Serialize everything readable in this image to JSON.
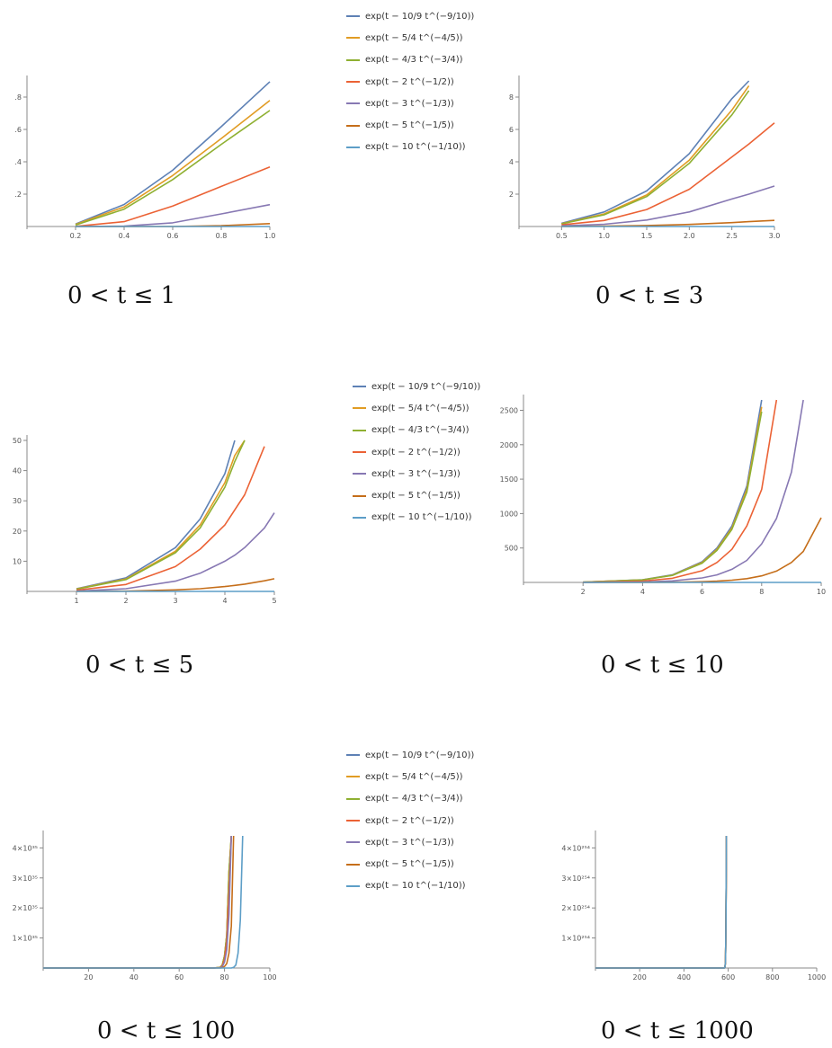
{
  "colors": [
    "#5e81b5",
    "#e19c24",
    "#8fb032",
    "#eb6235",
    "#8778b3",
    "#c56e1a",
    "#5d9ec7"
  ],
  "legend": {
    "entries": [
      "exp(t − 10/9 t^(−9/10))",
      "exp(t − 5/4 t^(−4/5))",
      "exp(t − 4/3 t^(−3/4))",
      "exp(t − 2 t^(−1/2))",
      "exp(t − 3 t^(−1/3))",
      "exp(t − 5 t^(−1/5))",
      "exp(t − 10 t^(−1/10))"
    ]
  },
  "chart_data": [
    {
      "type": "line",
      "caption": "0 < t ≤ 1",
      "xlim": [
        0,
        1
      ],
      "ylim": [
        0,
        0.9
      ],
      "xticks": [
        0.2,
        0.4,
        0.6,
        0.8,
        1.0
      ],
      "xtick_labels": [
        "0.2",
        "0.4",
        "0.6",
        "0.8",
        "1.0"
      ],
      "yticks": [
        0.2,
        0.4,
        0.6,
        0.8
      ],
      "ytick_labels": [
        ".2",
        ".4",
        ".6",
        ".8"
      ],
      "x": [
        0.2,
        0.4,
        0.6,
        0.8,
        1.0
      ],
      "series": [
        {
          "name": "exp(t − 10/9 t^(−9/10))",
          "values": [
            0.015,
            0.136,
            0.348,
            0.617,
            0.895
          ]
        },
        {
          "name": "exp(t − 5/4 t^(−4/5))",
          "values": [
            0.012,
            0.121,
            0.315,
            0.544,
            0.779
          ]
        },
        {
          "name": "exp(t − 4/3 t^(−3/4))",
          "values": [
            0.009,
            0.107,
            0.29,
            0.508,
            0.717
          ]
        },
        {
          "name": "exp(t − 2 t^(−1/2))",
          "values": [
            0.001,
            0.03,
            0.126,
            0.248,
            0.368
          ]
        },
        {
          "name": "exp(t − 3 t^(−1/3))",
          "values": [
            0.0,
            0.002,
            0.023,
            0.078,
            0.135
          ]
        },
        {
          "name": "exp(t − 5 t^(−1/5))",
          "values": [
            0.0,
            0.0,
            0.0,
            0.005,
            0.018
          ]
        },
        {
          "name": "exp(t − 10 t^(−1/10))",
          "values": [
            0.0,
            0.0,
            0.0,
            0.0,
            0.0
          ]
        }
      ]
    },
    {
      "type": "line",
      "caption": "0 < t ≤ 3",
      "xlim": [
        0,
        3
      ],
      "ylim": [
        0,
        9
      ],
      "xticks": [
        0.5,
        1.0,
        1.5,
        2.0,
        2.5,
        3.0
      ],
      "xtick_labels": [
        "0.5",
        "1.0",
        "1.5",
        "2.0",
        "2.5",
        "3.0"
      ],
      "yticks": [
        2,
        4,
        6,
        8
      ],
      "ytick_labels": [
        "2",
        "4",
        "6",
        "8"
      ],
      "x": [
        0.5,
        1.0,
        1.5,
        2.0,
        2.5,
        2.7,
        3.0
      ],
      "series": [
        {
          "name": "exp(t − 10/9 t^(−9/10))",
          "values": [
            0.2,
            0.9,
            2.2,
            4.5,
            7.9,
            9.0,
            null
          ]
        },
        {
          "name": "exp(t − 5/4 t^(−4/5))",
          "values": [
            0.17,
            0.78,
            1.95,
            4.1,
            7.2,
            8.7,
            null
          ]
        },
        {
          "name": "exp(t − 4/3 t^(−3/4))",
          "values": [
            0.16,
            0.72,
            1.85,
            3.9,
            6.9,
            8.4,
            null
          ]
        },
        {
          "name": "exp(t − 2 t^(−1/2))",
          "values": [
            0.1,
            0.37,
            1.05,
            2.3,
            4.3,
            5.1,
            6.4
          ]
        },
        {
          "name": "exp(t − 3 t^(−1/3))",
          "values": [
            0.04,
            0.14,
            0.4,
            0.9,
            1.7,
            2.0,
            2.5
          ]
        },
        {
          "name": "exp(t − 5 t^(−1/5))",
          "values": [
            0.0,
            0.02,
            0.06,
            0.13,
            0.24,
            0.3,
            0.38
          ]
        },
        {
          "name": "exp(t − 10 t^(−1/10))",
          "values": [
            0.0,
            0.0,
            0.0,
            0.0,
            0.0,
            0.0,
            0.0
          ]
        }
      ]
    },
    {
      "type": "line",
      "caption": "0 < t ≤ 5",
      "xlim": [
        0,
        5
      ],
      "ylim": [
        0,
        50
      ],
      "xticks": [
        1,
        2,
        3,
        4,
        5
      ],
      "xtick_labels": [
        "1",
        "2",
        "3",
        "4",
        "5"
      ],
      "yticks": [
        10,
        20,
        30,
        40,
        50
      ],
      "ytick_labels": [
        "10",
        "20",
        "30",
        "40",
        "50"
      ],
      "x": [
        1,
        2,
        3,
        3.5,
        4,
        4.2,
        4.4,
        4.8,
        5
      ],
      "series": [
        {
          "name": "exp(t − 10/9 t^(−9/10))",
          "values": [
            0.9,
            4.5,
            14.5,
            24.0,
            39.0,
            50.0,
            null,
            null,
            null
          ]
        },
        {
          "name": "exp(t − 5/4 t^(−4/5))",
          "values": [
            0.8,
            4.1,
            13.3,
            22.0,
            36.0,
            45.0,
            50.0,
            null,
            null
          ]
        },
        {
          "name": "exp(t − 4/3 t^(−3/4))",
          "values": [
            0.7,
            3.9,
            12.8,
            21.0,
            34.5,
            43.0,
            50.0,
            null,
            null
          ]
        },
        {
          "name": "exp(t − 2 t^(−1/2))",
          "values": [
            0.4,
            2.3,
            8.2,
            14.0,
            22.0,
            27.0,
            32.0,
            48.0,
            null
          ]
        },
        {
          "name": "exp(t − 3 t^(−1/3))",
          "values": [
            0.1,
            0.9,
            3.4,
            6.0,
            10.0,
            12.0,
            14.5,
            21.0,
            26.0
          ]
        },
        {
          "name": "exp(t − 5 t^(−1/5))",
          "values": [
            0.0,
            0.1,
            0.5,
            0.9,
            1.6,
            2.0,
            2.4,
            3.5,
            4.2
          ]
        },
        {
          "name": "exp(t − 10 t^(−1/10))",
          "values": [
            0.0,
            0.0,
            0.0,
            0.0,
            0.0,
            0.0,
            0.0,
            0.0,
            0.0
          ]
        }
      ]
    },
    {
      "type": "line",
      "caption": "0 < t ≤ 10",
      "xlim": [
        0,
        10
      ],
      "ylim": [
        0,
        2650
      ],
      "xticks": [
        2,
        4,
        6,
        8,
        10
      ],
      "xtick_labels": [
        "2",
        "4",
        "6",
        "8",
        "10"
      ],
      "yticks": [
        500,
        1000,
        1500,
        2000,
        2500
      ],
      "ytick_labels": [
        "500",
        "1000",
        "1500",
        "2000",
        "2500"
      ],
      "x": [
        2,
        4,
        5,
        6,
        6.5,
        7,
        7.5,
        8,
        8.5,
        9,
        9.4,
        10
      ],
      "series": [
        {
          "name": "exp(t − 10/9 t^(−9/10))",
          "values": [
            4,
            39,
            110,
            300,
            500,
            820,
            1400,
            2650,
            null,
            null,
            null,
            null
          ]
        },
        {
          "name": "exp(t − 5/4 t^(−4/5))",
          "values": [
            4,
            37,
            105,
            290,
            480,
            790,
            1350,
            2550,
            null,
            null,
            null,
            null
          ]
        },
        {
          "name": "exp(t − 4/3 t^(−3/4))",
          "values": [
            3.6,
            36,
            102,
            280,
            465,
            770,
            1310,
            2480,
            null,
            null,
            null,
            null
          ]
        },
        {
          "name": "exp(t − 2 t^(−1/2))",
          "values": [
            2,
            20,
            60,
            170,
            290,
            480,
            820,
            1350,
            2650,
            null,
            null,
            null
          ]
        },
        {
          "name": "exp(t − 3 t^(−1/3))",
          "values": [
            0.7,
            7,
            22,
            65,
            110,
            190,
            320,
            560,
            930,
            1600,
            2650,
            null
          ]
        },
        {
          "name": "exp(t − 5 t^(−1/5))",
          "values": [
            0,
            0.8,
            3,
            10,
            18,
            32,
            55,
            95,
            165,
            290,
            450,
            940
          ]
        },
        {
          "name": "exp(t − 10 t^(−1/10))",
          "values": [
            0,
            0,
            0,
            0,
            0,
            0,
            0,
            0,
            0,
            0,
            0,
            0
          ]
        }
      ]
    },
    {
      "type": "line",
      "caption": "0 < t ≤ 100",
      "xlim": [
        0,
        100
      ],
      "ylim": [
        0,
        4.4
      ],
      "y_unit_note": "×10^35",
      "xticks": [
        20,
        40,
        60,
        80,
        100
      ],
      "xtick_labels": [
        "20",
        "40",
        "60",
        "80",
        "100"
      ],
      "yticks": [
        1,
        2,
        3,
        4
      ],
      "ytick_labels": [
        "1×10³⁵",
        "2×10³⁵",
        "3×10³⁵",
        "4×10³⁵"
      ],
      "x": [
        0,
        60,
        75,
        78,
        79,
        80,
        81,
        82,
        83,
        84,
        85,
        86,
        87,
        88
      ],
      "series": [
        {
          "name": "exp(t − 10/9 t^(−9/10))",
          "values": [
            0,
            0,
            0,
            0.02,
            0.1,
            0.4,
            1.1,
            3.2,
            4.4,
            null,
            null,
            null,
            null,
            null
          ]
        },
        {
          "name": "exp(t − 5/4 t^(−4/5))",
          "values": [
            0,
            0,
            0,
            0.02,
            0.1,
            0.4,
            1.1,
            3.2,
            4.4,
            null,
            null,
            null,
            null,
            null
          ]
        },
        {
          "name": "exp(t − 4/3 t^(−3/4))",
          "values": [
            0,
            0,
            0,
            0.02,
            0.1,
            0.4,
            1.1,
            3.2,
            4.4,
            null,
            null,
            null,
            null,
            null
          ]
        },
        {
          "name": "exp(t − 2 t^(−1/2))",
          "values": [
            0,
            0,
            0,
            0.015,
            0.07,
            0.3,
            0.9,
            2.6,
            4.4,
            null,
            null,
            null,
            null,
            null
          ]
        },
        {
          "name": "exp(t − 3 t^(−1/3))",
          "values": [
            0,
            0,
            0,
            0.01,
            0.04,
            0.2,
            0.6,
            1.8,
            4.4,
            null,
            null,
            null,
            null,
            null
          ]
        },
        {
          "name": "exp(t − 5 t^(−1/5))",
          "values": [
            0,
            0,
            0,
            0,
            0.01,
            0.05,
            0.15,
            0.5,
            1.4,
            4.4,
            null,
            null,
            null,
            null
          ]
        },
        {
          "name": "exp(t − 10 t^(−1/10))",
          "values": [
            0,
            0,
            0,
            0,
            0,
            0,
            0,
            0,
            0,
            0.02,
            0.1,
            0.5,
            1.6,
            4.4
          ]
        }
      ]
    },
    {
      "type": "line",
      "caption": "0 < t ≤ 1000",
      "xlim": [
        0,
        1000
      ],
      "ylim": [
        0,
        4.4
      ],
      "y_unit_note": "×10^254",
      "xticks": [
        200,
        400,
        600,
        800,
        1000
      ],
      "xtick_labels": [
        "200",
        "400",
        "600",
        "800",
        "1000"
      ],
      "yticks": [
        1,
        2,
        3,
        4
      ],
      "ytick_labels": [
        "1×10²⁵⁴",
        "2×10²⁵⁴",
        "3×10²⁵⁴",
        "4×10²⁵⁴"
      ],
      "x": [
        0,
        580,
        585,
        588,
        590,
        592
      ],
      "series": [
        {
          "name": "exp(t − 10/9 t^(−9/10))",
          "values": [
            0,
            0,
            0.01,
            0.2,
            1.5,
            4.4
          ]
        },
        {
          "name": "exp(t − 5/4 t^(−4/5))",
          "values": [
            0,
            0,
            0.01,
            0.2,
            1.5,
            4.4
          ]
        },
        {
          "name": "exp(t − 4/3 t^(−3/4))",
          "values": [
            0,
            0,
            0.01,
            0.2,
            1.5,
            4.4
          ]
        },
        {
          "name": "exp(t − 2 t^(−1/2))",
          "values": [
            0,
            0,
            0.01,
            0.2,
            1.5,
            4.4
          ]
        },
        {
          "name": "exp(t − 3 t^(−1/3))",
          "values": [
            0,
            0,
            0.01,
            0.2,
            1.5,
            4.4
          ]
        },
        {
          "name": "exp(t − 5 t^(−1/5))",
          "values": [
            0,
            0,
            0.01,
            0.2,
            1.5,
            4.4
          ]
        },
        {
          "name": "exp(t − 10 t^(−1/10))",
          "values": [
            0,
            0,
            0.01,
            0.2,
            1.5,
            4.4
          ]
        }
      ]
    }
  ]
}
